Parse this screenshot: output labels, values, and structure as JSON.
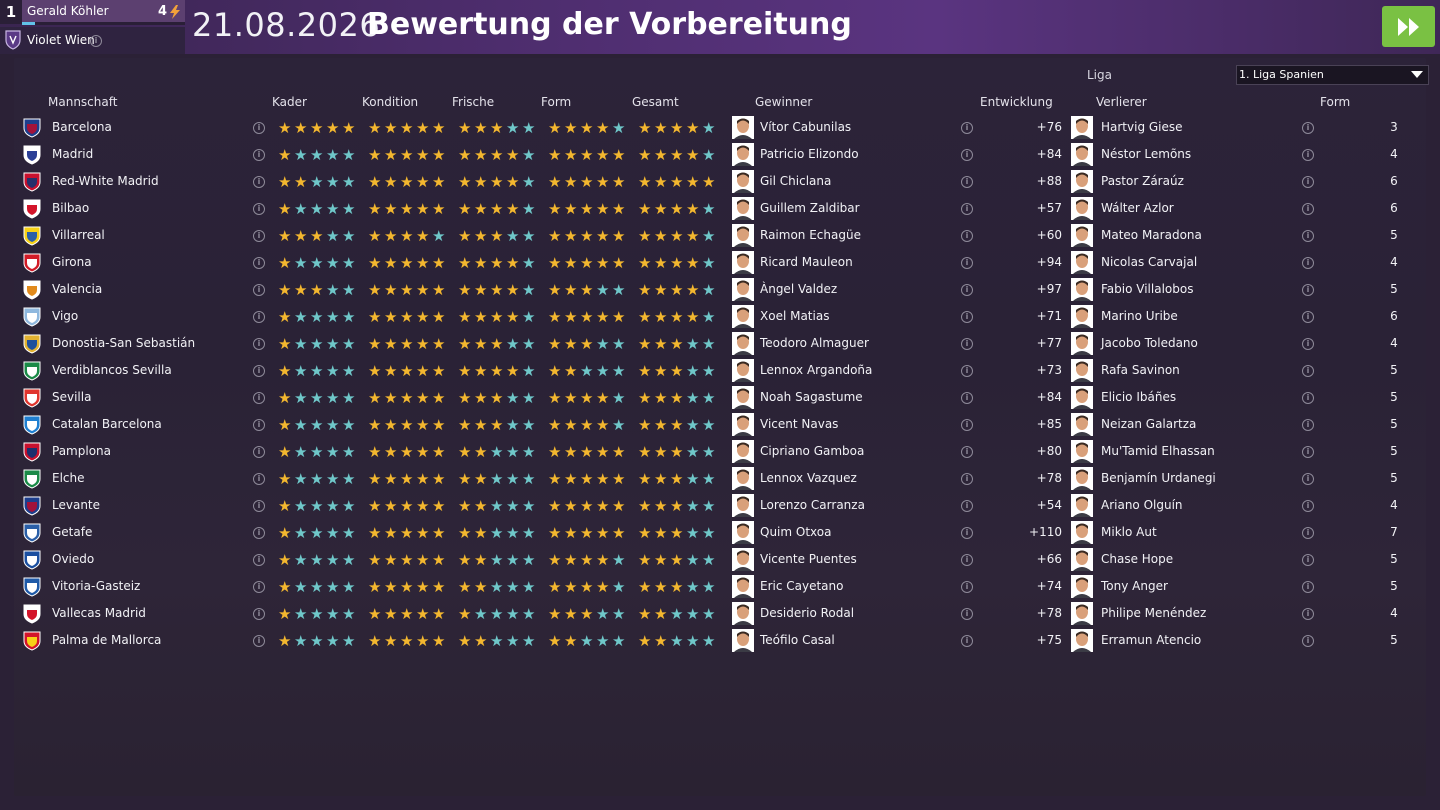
{
  "manager": {
    "rank": "1",
    "name": "Gerald Köhler",
    "level": "4",
    "xp_fraction": 0.08
  },
  "club": {
    "name": "Violet Wien"
  },
  "header": {
    "date": "21.08.2026",
    "title": "Bewertung der Vorbereitung"
  },
  "filter": {
    "label": "Liga",
    "value": "1. Liga Spanien"
  },
  "columns": {
    "team": "Mannschaft",
    "kader": "Kader",
    "kondition": "Kondition",
    "frische": "Frische",
    "form": "Form",
    "gesamt": "Gesamt",
    "gewinner": "Gewinner",
    "entwicklung": "Entwicklung",
    "verlierer": "Verlierer",
    "form2": "Form"
  },
  "colors": {
    "star_gold": "#f3b72f",
    "star_empty": "#6fc7c9",
    "accent_green": "#7ac143"
  },
  "rows": [
    {
      "team": "Barcelona",
      "crest": [
        "#1d3e8c",
        "#a3123a"
      ],
      "kader": 5,
      "kondition": 5,
      "frische": 3,
      "form": 4,
      "gesamt": 4,
      "winner": "Vítor Cabunilas",
      "winner_dev": "+76",
      "loser": "Hartvig Giese",
      "form_val": "3"
    },
    {
      "team": "Madrid",
      "crest": [
        "#ffffff",
        "#2b3f96"
      ],
      "kader": 1,
      "kondition": 5,
      "frische": 4,
      "form": 5,
      "gesamt": 4,
      "winner": "Patricio Elizondo",
      "winner_dev": "+84",
      "loser": "Néstor Lemõns",
      "form_val": "4"
    },
    {
      "team": "Red-White Madrid",
      "crest": [
        "#c8102e",
        "#27306b"
      ],
      "kader": 2,
      "kondition": 5,
      "frische": 4,
      "form": 5,
      "gesamt": 5,
      "winner": "Gil Chiclana",
      "winner_dev": "+88",
      "loser": "Pastor Záraúz",
      "form_val": "6"
    },
    {
      "team": "Bilbao",
      "crest": [
        "#ffffff",
        "#d3142a"
      ],
      "kader": 1,
      "kondition": 5,
      "frische": 4,
      "form": 5,
      "gesamt": 4,
      "winner": "Guillem Zaldibar",
      "winner_dev": "+57",
      "loser": "Wálter Azlor",
      "form_val": "6"
    },
    {
      "team": "Villarreal",
      "crest": [
        "#f7d117",
        "#2a5fa8"
      ],
      "kader": 3,
      "kondition": 4,
      "frische": 3,
      "form": 5,
      "gesamt": 4,
      "winner": "Raimon Echagüe",
      "winner_dev": "+60",
      "loser": "Mateo Maradona",
      "form_val": "5"
    },
    {
      "team": "Girona",
      "crest": [
        "#d21b27",
        "#ffffff"
      ],
      "kader": 1,
      "kondition": 5,
      "frische": 4,
      "form": 5,
      "gesamt": 4,
      "winner": "Ricard Mauleon",
      "winner_dev": "+94",
      "loser": "Nicolas Carvajal",
      "form_val": "4"
    },
    {
      "team": "Valencia",
      "crest": [
        "#ffffff",
        "#e18a1c"
      ],
      "kader": 3,
      "kondition": 5,
      "frische": 4,
      "form": 3,
      "gesamt": 4,
      "winner": "Àngel Valdez",
      "winner_dev": "+97",
      "loser": "Fabio Villalobos",
      "form_val": "5"
    },
    {
      "team": "Vigo",
      "crest": [
        "#8fb8de",
        "#ffffff"
      ],
      "kader": 1,
      "kondition": 5,
      "frische": 4,
      "form": 5,
      "gesamt": 4,
      "winner": "Xoel Matias",
      "winner_dev": "+71",
      "loser": "Marino Uribe",
      "form_val": "6"
    },
    {
      "team": "Donostia-San Sebastián",
      "crest": [
        "#e2b231",
        "#1e4f9c"
      ],
      "kader": 1,
      "kondition": 5,
      "frische": 3,
      "form": 3,
      "gesamt": 3,
      "winner": "Teodoro Almaguer",
      "winner_dev": "+77",
      "loser": "Jacobo Toledano",
      "form_val": "4"
    },
    {
      "team": "Verdiblancos Sevilla",
      "crest": [
        "#1a8a47",
        "#ffffff"
      ],
      "kader": 1,
      "kondition": 5,
      "frische": 4,
      "form": 2,
      "gesamt": 3,
      "winner": "Lennox Argandoña",
      "winner_dev": "+73",
      "loser": "Rafa Savinon",
      "form_val": "5"
    },
    {
      "team": "Sevilla",
      "crest": [
        "#e0352e",
        "#ffffff"
      ],
      "kader": 1,
      "kondition": 5,
      "frische": 3,
      "form": 4,
      "gesamt": 3,
      "winner": "Noah Sagastume",
      "winner_dev": "+84",
      "loser": "Elicio Ibáñes",
      "form_val": "5"
    },
    {
      "team": "Catalan Barcelona",
      "crest": [
        "#1f7fd1",
        "#ffffff"
      ],
      "kader": 1,
      "kondition": 5,
      "frische": 3,
      "form": 4,
      "gesamt": 3,
      "winner": "Vicent Navas",
      "winner_dev": "+85",
      "loser": "Neizan Galartza",
      "form_val": "5"
    },
    {
      "team": "Pamplona",
      "crest": [
        "#c8102e",
        "#1d2f6e"
      ],
      "kader": 1,
      "kondition": 5,
      "frische": 2,
      "form": 5,
      "gesamt": 3,
      "winner": "Cipriano Gamboa",
      "winner_dev": "+80",
      "loser": "Mu'Tamid Elhassan",
      "form_val": "5"
    },
    {
      "team": "Elche",
      "crest": [
        "#1a8a47",
        "#ffffff"
      ],
      "kader": 1,
      "kondition": 5,
      "frische": 2,
      "form": 5,
      "gesamt": 3,
      "winner": "Lennox Vazquez",
      "winner_dev": "+78",
      "loser": "Benjamín Urdanegi",
      "form_val": "5"
    },
    {
      "team": "Levante",
      "crest": [
        "#1d3e8c",
        "#a3123a"
      ],
      "kader": 1,
      "kondition": 5,
      "frische": 2,
      "form": 5,
      "gesamt": 3,
      "winner": "Lorenzo Carranza",
      "winner_dev": "+54",
      "loser": "Ariano Olguín",
      "form_val": "4"
    },
    {
      "team": "Getafe",
      "crest": [
        "#2a5fa8",
        "#ffffff"
      ],
      "kader": 1,
      "kondition": 5,
      "frische": 2,
      "form": 5,
      "gesamt": 3,
      "winner": "Quim Otxoa",
      "winner_dev": "+110",
      "loser": "Miklo Aut",
      "form_val": "7"
    },
    {
      "team": "Oviedo",
      "crest": [
        "#1b4fa0",
        "#ffffff"
      ],
      "kader": 1,
      "kondition": 5,
      "frische": 2,
      "form": 4,
      "gesamt": 3,
      "winner": "Vicente Puentes",
      "winner_dev": "+66",
      "loser": "Chase Hope",
      "form_val": "5"
    },
    {
      "team": "Vitoria-Gasteiz",
      "crest": [
        "#1f5aa8",
        "#ffffff"
      ],
      "kader": 1,
      "kondition": 5,
      "frische": 2,
      "form": 4,
      "gesamt": 3,
      "winner": "Eric Cayetano",
      "winner_dev": "+74",
      "loser": "Tony Anger",
      "form_val": "5"
    },
    {
      "team": "Vallecas Madrid",
      "crest": [
        "#ffffff",
        "#d3142a"
      ],
      "kader": 1,
      "kondition": 5,
      "frische": 1,
      "form": 3,
      "gesamt": 2,
      "winner": "Desiderio Rodal",
      "winner_dev": "+78",
      "loser": "Philipe Menéndez",
      "form_val": "4"
    },
    {
      "team": "Palma de Mallorca",
      "crest": [
        "#d3142a",
        "#f7d117"
      ],
      "kader": 1,
      "kondition": 5,
      "frische": 2,
      "form": 2,
      "gesamt": 2,
      "winner": "Teófilo Casal",
      "winner_dev": "+75",
      "loser": "Erramun Atencio",
      "form_val": "5"
    }
  ]
}
